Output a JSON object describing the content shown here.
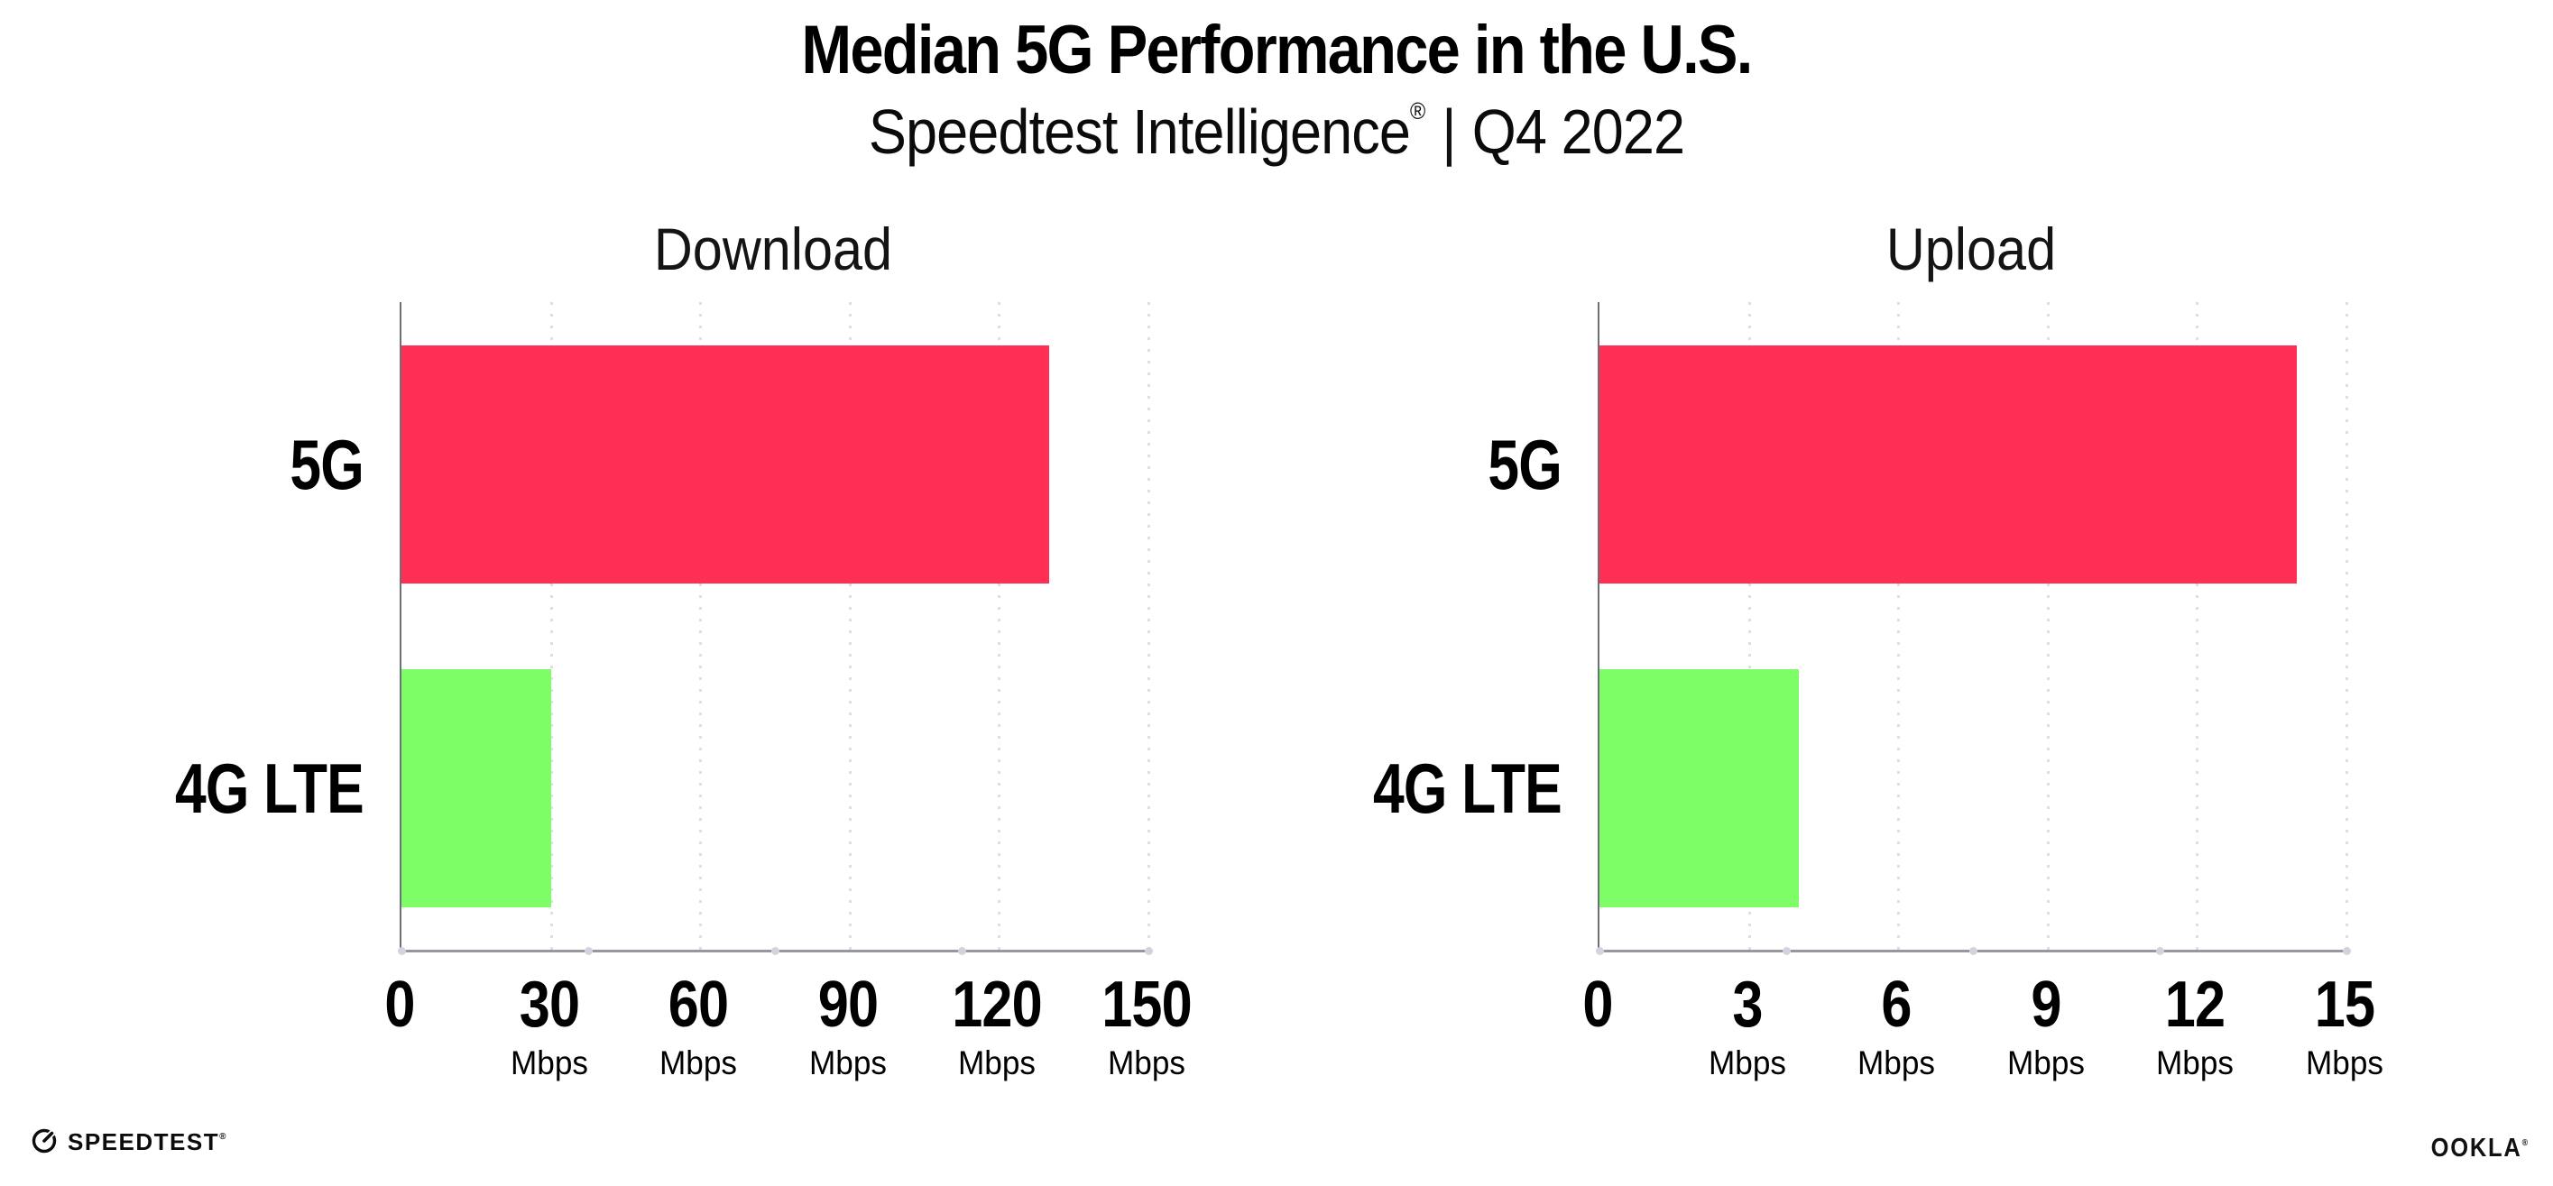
{
  "header": {
    "title": "Median 5G Performance in the U.S.",
    "subtitle_brand": "Speedtest Intelligence",
    "subtitle_reg": "®",
    "subtitle_sep": "|",
    "subtitle_period": "Q4 2022"
  },
  "chart_data": [
    {
      "type": "bar",
      "orientation": "horizontal",
      "title": "Download",
      "categories": [
        "5G",
        "4G LTE"
      ],
      "values": [
        130,
        30
      ],
      "unit": "Mbps",
      "xlim": [
        0,
        150
      ],
      "xticks": [
        0,
        30,
        60,
        90,
        120,
        150
      ],
      "bar_colors": [
        "#FF2E55",
        "#7DFD66"
      ],
      "grid": "vertical-dotted",
      "legend": "none"
    },
    {
      "type": "bar",
      "orientation": "horizontal",
      "title": "Upload",
      "categories": [
        "5G",
        "4G LTE"
      ],
      "values": [
        14,
        4
      ],
      "unit": "Mbps",
      "xlim": [
        0,
        15
      ],
      "xticks": [
        0,
        3,
        6,
        9,
        12,
        15
      ],
      "bar_colors": [
        "#FF2E55",
        "#7DFD66"
      ],
      "grid": "vertical-dotted",
      "legend": "none"
    }
  ],
  "footer": {
    "speedtest_label": "SPEEDTEST",
    "speedtest_reg": "®",
    "speedtest_icon": "gauge-icon",
    "ookla_label": "OOKLA",
    "ookla_reg": "®"
  },
  "colors": {
    "bar_5g": "#FF2E55",
    "bar_4g_lte": "#7DFD66",
    "x_axis": "#97979D",
    "y_axis": "#6E6E76",
    "gridline": "#DEDEE9",
    "text": "#000000"
  }
}
